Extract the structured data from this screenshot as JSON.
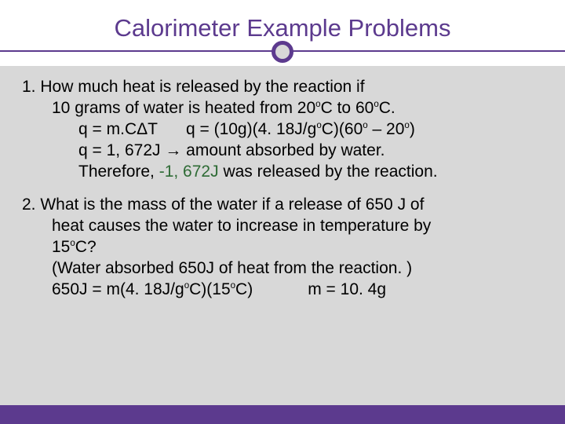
{
  "colors": {
    "accent": "#5c3a8e",
    "background": "#d8d8d8",
    "title_band": "#ffffff",
    "text": "#000000",
    "negative": "#2e6b35"
  },
  "typography": {
    "title_fontsize": 31,
    "body_fontsize": 21,
    "font_family": "Arial"
  },
  "title": "Calorimeter Example Problems",
  "p1": {
    "l1": "1. How much heat is released by the reaction if",
    "l2a": "10 grams of water is heated from 20",
    "l2b": "C to 60",
    "l2c": "C.",
    "l3a": "q = m.CΔT",
    "l3b": "q = (10g)(4. 18J/g",
    "l3c": "C)(60",
    "l3d": " – 20",
    "l3e": ")",
    "l4": "q = 1, 672J  →  amount absorbed by water.",
    "l5a": "Therefore, ",
    "l5b": "-1, 672J",
    "l5c": " was released by the reaction."
  },
  "p2": {
    "l1": "2. What is the mass of the water if a release of 650 J of",
    "l2": "heat causes the water to increase in temperature by",
    "l3a": "15",
    "l3b": "C?",
    "l4": "(Water absorbed 650J of heat from the reaction. )",
    "l5a": " 650J = m(4. 18J/g",
    "l5b": "C)(15",
    "l5c": "C)",
    "l5d": "m = 10. 4g"
  },
  "sup_o": "o"
}
